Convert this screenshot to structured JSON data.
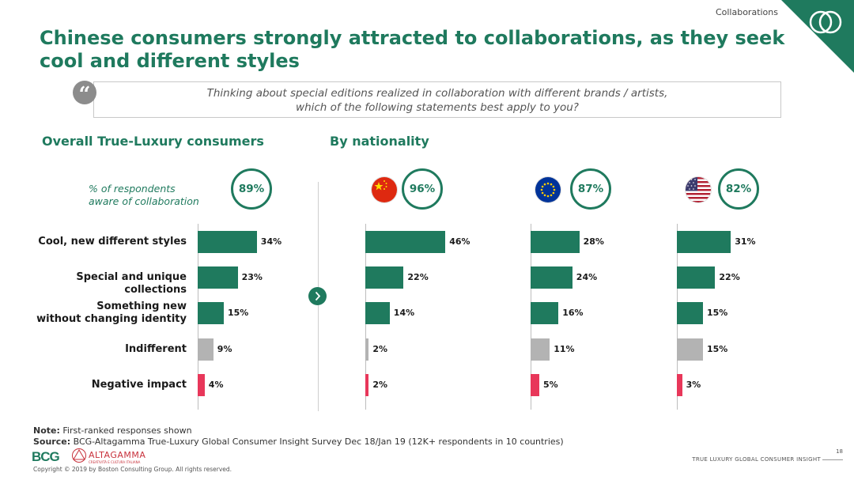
{
  "header": {
    "section_tag": "Collaborations",
    "title": "Chinese consumers strongly attracted to collaborations, as they seek cool and different styles"
  },
  "question": {
    "line1": "Thinking about special editions realized in collaboration with different brands / artists,",
    "line2": "which of the following statements best apply to you?"
  },
  "sections": {
    "overall": "Overall True-Luxury consumers",
    "nationality": "By nationality"
  },
  "aware_label": {
    "line1": "% of respondents",
    "line2": "aware of collaboration"
  },
  "icons": [
    "quote-icon",
    "china-flag-icon",
    "eu-flag-icon",
    "usa-flag-icon",
    "chevron-right-icon",
    "rings-logo-icon"
  ],
  "colors": {
    "accent": "#1f7a5e",
    "neutral": "#b3b3b3",
    "negative": "#e8375a"
  },
  "chart_data": {
    "type": "bar",
    "orientation": "horizontal",
    "categories": [
      "Cool, new different styles",
      "Special and unique collections",
      "Something new without changing identity",
      "Indifferent",
      "Negative impact"
    ],
    "category_lines": [
      [
        "Cool, new different styles"
      ],
      [
        "Special and unique collections"
      ],
      [
        "Something new",
        "without changing identity"
      ],
      [
        "Indifferent"
      ],
      [
        "Negative impact"
      ]
    ],
    "category_colors": [
      "#1f7a5e",
      "#1f7a5e",
      "#1f7a5e",
      "#b3b3b3",
      "#e8375a"
    ],
    "unit": "%",
    "series": [
      {
        "name": "",
        "aware": "89%",
        "values": [
          34,
          23,
          15,
          9,
          4
        ]
      },
      {
        "name": "",
        "aware": "96%",
        "values": [
          46,
          22,
          14,
          2,
          2
        ]
      },
      {
        "name": "",
        "aware": "87%",
        "values": [
          28,
          24,
          16,
          11,
          5
        ]
      },
      {
        "name": "",
        "aware": "82%",
        "values": [
          31,
          22,
          15,
          15,
          3
        ]
      }
    ]
  },
  "footer": {
    "note_label": "Note:",
    "note": "First-ranked responses shown",
    "source_label": "Source:",
    "source": "BCG-Altagamma True-Luxury Global Consumer Insight Survey Dec 18/Jan 19 (12K+ respondents in 10 countries)",
    "bcg": "BCG",
    "altagamma": "ALTAGAMMA",
    "altagamma_sub": "CREATIVITÀ E CULTURA ITALIANA",
    "copyright": "Copyright © 2019 by Boston Consulting Group. All rights reserved.",
    "page": "18",
    "deck": "TRUE LUXURY GLOBAL CONSUMER INSIGHT"
  }
}
